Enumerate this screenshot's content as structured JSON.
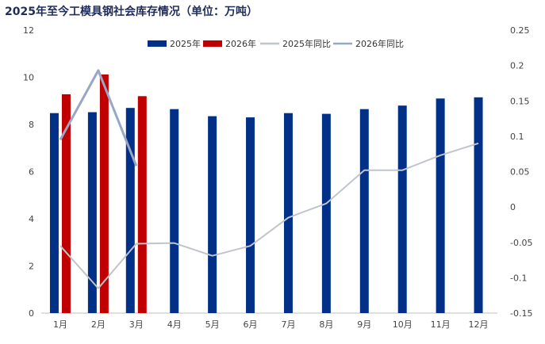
{
  "chart_data": {
    "type": "bar",
    "title": "2025年至今工模具钢社会库存情况（单位：万吨）",
    "categories": [
      "1月",
      "2月",
      "3月",
      "4月",
      "5月",
      "6月",
      "7月",
      "8月",
      "9月",
      "10月",
      "11月",
      "12月"
    ],
    "series": [
      {
        "name": "2025年",
        "kind": "bar",
        "axis": "left",
        "color": "#003087",
        "values": [
          8.48,
          8.52,
          8.7,
          8.65,
          8.35,
          8.3,
          8.48,
          8.45,
          8.65,
          8.8,
          9.1,
          9.15
        ]
      },
      {
        "name": "2026年",
        "kind": "bar",
        "axis": "left",
        "color": "#c00000",
        "values": [
          9.28,
          10.12,
          9.2,
          null,
          null,
          null,
          null,
          null,
          null,
          null,
          null,
          null
        ]
      },
      {
        "name": "2025年同比",
        "kind": "line",
        "axis": "right",
        "color": "#c0c4cc",
        "values": [
          -0.055,
          -0.115,
          -0.052,
          -0.051,
          -0.069,
          -0.055,
          -0.015,
          0.005,
          0.052,
          0.052,
          0.073,
          0.09
        ]
      },
      {
        "name": "2026年同比",
        "kind": "line",
        "axis": "right",
        "color": "#97a7c6",
        "values": [
          0.095,
          0.193,
          0.058,
          null,
          null,
          null,
          null,
          null,
          null,
          null,
          null,
          null
        ]
      }
    ],
    "yleft": {
      "min": 0,
      "max": 12,
      "ticks": [
        0,
        2,
        4,
        6,
        8,
        10,
        12
      ]
    },
    "yright": {
      "min": -0.15,
      "max": 0.25,
      "ticks": [
        -0.15,
        -0.1,
        -0.05,
        0,
        0.05,
        0.1,
        0.15,
        0.2,
        0.25
      ],
      "tick_labels": [
        "-0.15",
        "-0.1",
        "-0.05",
        "0",
        "0.05",
        "0.1",
        "0.15",
        "0.2",
        "0.25"
      ]
    },
    "legend_position": "top"
  }
}
